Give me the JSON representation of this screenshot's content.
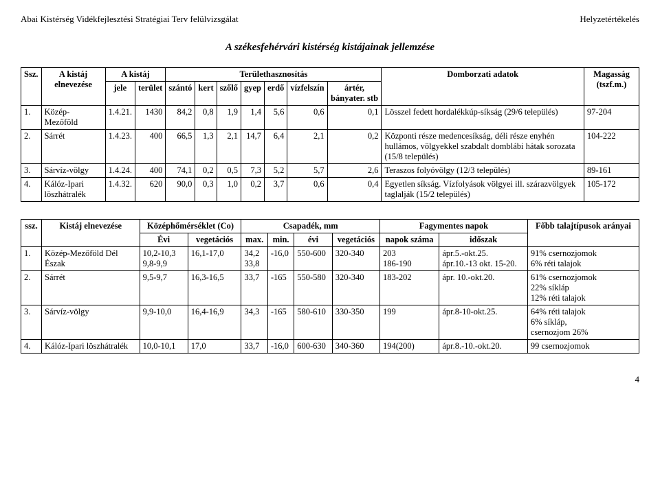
{
  "header": {
    "left": "Abai Kistérség Vidékfejlesztési Stratégiai Terv felülvizsgálat",
    "right": "Helyzetértékelés"
  },
  "title": "A székesfehérvári kistérség kistájainak jellemzése",
  "table1": {
    "head": {
      "ssz": "Ssz.",
      "name": "A kistáj elnevezése",
      "kistaj": "A kistáj",
      "jele": "jele",
      "terulet": "terület",
      "hasznositas": "Területhasznosítás",
      "szanto": "szántó",
      "kert": "kert",
      "szolo": "szőlő",
      "gyep": "gyep",
      "erdo": "erdő",
      "vizfelsin": "vízfelszín",
      "arter": "ártér, bányater. stb",
      "domborzat": "Domborzati adatok",
      "magassag": "Magasság (tszf.m.)"
    },
    "rows": [
      {
        "ssz": "1.",
        "name": "Közép-Mezőföld",
        "jele": "1.4.21.",
        "terulet": "1430",
        "szanto": "84,2",
        "kert": "0,8",
        "szolo": "1,9",
        "gyep": "1,4",
        "erdo": "5,6",
        "viz": "0,6",
        "arter": "0,1",
        "domb": "Lösszel fedett hordalékkúp-síkság (29/6 település)",
        "mag": "97-204"
      },
      {
        "ssz": "2.",
        "name": "Sárrét",
        "jele": "1.4.23.",
        "terulet": "400",
        "szanto": "66,5",
        "kert": "1,3",
        "szolo": "2,1",
        "gyep": "14,7",
        "erdo": "6,4",
        "viz": "2,1",
        "arter": "0,2",
        "domb": "Központi része medencesíkság, déli része enyhén hullámos, völgyekkel szabdalt domblábi hátak sorozata (15/8 település)",
        "mag": "104-222"
      },
      {
        "ssz": "3.",
        "name": "Sárvíz-völgy",
        "jele": "1.4.24.",
        "terulet": "400",
        "szanto": "74,1",
        "kert": "0,2",
        "szolo": "0,5",
        "gyep": "7,3",
        "erdo": "5,2",
        "viz": "5,7",
        "arter": "2,6",
        "domb": "Teraszos folyóvölgy (12/3 település)",
        "mag": "89-161"
      },
      {
        "ssz": "4.",
        "name": "Kálóz-Ipari löszhátralék",
        "jele": "1.4.32.",
        "terulet": "620",
        "szanto": "90,0",
        "kert": "0,3",
        "szolo": "1,0",
        "gyep": "0,2",
        "erdo": "3,7",
        "viz": "0,6",
        "arter": "0,4",
        "domb": "Egyetlen síkság. Vízfolyások völgyei ill. szárazvölgyek taglalják (15/2 település)",
        "mag": "105-172"
      }
    ]
  },
  "table2": {
    "head": {
      "ssz": "ssz.",
      "name": "Kistáj elnevezése",
      "homer": "Középhőmérséklet (Co)",
      "evi": "Évi",
      "veg": "vegetációs",
      "csap": "Csapadék, mm",
      "max": "max.",
      "min": "min.",
      "eviCsap": "évi",
      "vegCsap": "vegetációs",
      "fagy": "Fagymentes napok",
      "napok": "napok száma",
      "idoszak": "időszak",
      "fobb": "Főbb talajtípusok arányai"
    },
    "rows": [
      {
        "ssz": "1.",
        "name": "Közép-Mezőföld Dél\nÉszak",
        "evi": "10,2-10,3\n9,8-9,9",
        "veg": "16,1-17,0",
        "max": "34,2\n33,8",
        "min": "-16,0",
        "eviCsap": "550-600",
        "vegCsap": "320-340",
        "napok": "203\n186-190",
        "idoszak": "ápr.5.-okt.25.\nápr.10.-13 okt. 15-20.",
        "fobb": "91% csernozjomok\n6% réti talajok"
      },
      {
        "ssz": "2.",
        "name": "Sárrét",
        "evi": "9,5-9,7",
        "veg": "16,3-16,5",
        "max": "33,7",
        "min": "-165",
        "eviCsap": "550-580",
        "vegCsap": "320-340",
        "napok": "183-202",
        "idoszak": "ápr. 10.-okt.20.",
        "fobb": "61% csernozjomok\n22% síkláp\n12% réti talajok"
      },
      {
        "ssz": "3.",
        "name": "Sárvíz-völgy",
        "evi": "9,9-10,0",
        "veg": "16,4-16,9",
        "max": "34,3",
        "min": "-165",
        "eviCsap": "580-610",
        "vegCsap": "330-350",
        "napok": "199",
        "idoszak": "ápr.8-10-okt.25.",
        "fobb": "64% réti talajok\n6% síkláp,\ncsernozjom 26%"
      },
      {
        "ssz": "4.",
        "name": "Kálóz-Ipari löszhátralék",
        "evi": "10,0-10,1",
        "veg": "17,0",
        "max": "33,7",
        "min": "-16,0",
        "eviCsap": "600-630",
        "vegCsap": "340-360",
        "napok": "194(200)",
        "idoszak": "ápr.8.-10.-okt.20.",
        "fobb": "99 csernozjomok"
      }
    ]
  },
  "pageNum": "4"
}
